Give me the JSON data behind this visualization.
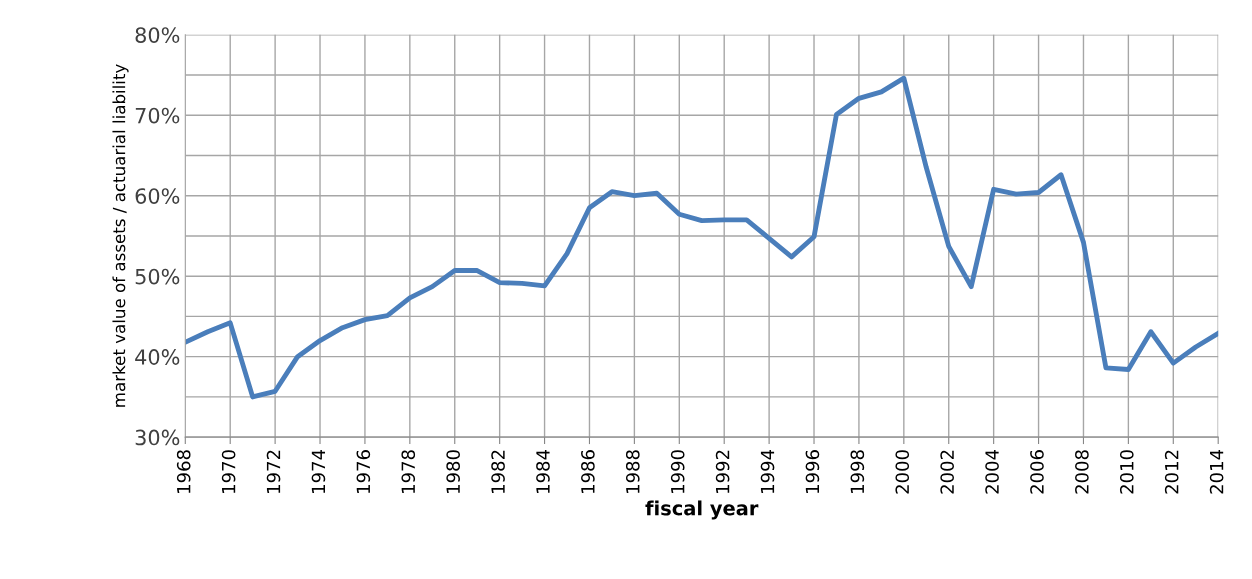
{
  "chart_data": {
    "type": "line",
    "xlabel": "fiscal year",
    "ylabel": "market value of assets / actuarial liability",
    "x": [
      1968,
      1969,
      1970,
      1971,
      1972,
      1973,
      1974,
      1975,
      1976,
      1977,
      1978,
      1979,
      1980,
      1981,
      1982,
      1983,
      1984,
      1985,
      1986,
      1987,
      1988,
      1989,
      1990,
      1991,
      1992,
      1993,
      1994,
      1995,
      1996,
      1997,
      1998,
      1999,
      2000,
      2001,
      2002,
      2003,
      2004,
      2005,
      2006,
      2007,
      2008,
      2009,
      2010,
      2011,
      2012,
      2013,
      2014
    ],
    "series": [
      {
        "color": "#4a7ebb",
        "values": [
          41.8,
          43.1,
          44.2,
          35.0,
          35.7,
          40.0,
          42.0,
          43.6,
          44.6,
          45.1,
          47.3,
          48.7,
          50.7,
          50.7,
          49.2,
          49.1,
          48.8,
          52.8,
          58.5,
          60.5,
          60.0,
          60.3,
          57.7,
          56.9,
          57.0,
          57.0,
          54.7,
          52.4,
          54.9,
          70.1,
          72.1,
          72.9,
          74.6,
          63.5,
          53.7,
          48.7,
          60.8,
          60.2,
          60.4,
          62.6,
          54.2,
          38.6,
          38.4,
          43.1,
          39.2,
          41.2,
          42.9
        ]
      }
    ],
    "xlim": [
      1968,
      2014
    ],
    "xticks": [
      1968,
      1970,
      1972,
      1974,
      1976,
      1978,
      1980,
      1982,
      1984,
      1986,
      1988,
      1990,
      1992,
      1994,
      1996,
      1998,
      2000,
      2002,
      2004,
      2006,
      2008,
      2010,
      2012,
      2014
    ],
    "ylim": [
      30,
      80
    ],
    "yticks": [
      {
        "value": 30,
        "label": "30%"
      },
      {
        "value": 35,
        "label": null
      },
      {
        "value": 40,
        "label": "40%"
      },
      {
        "value": 45,
        "label": null
      },
      {
        "value": 50,
        "label": "50%"
      },
      {
        "value": 55,
        "label": null
      },
      {
        "value": 60,
        "label": "60%"
      },
      {
        "value": 65,
        "label": null
      },
      {
        "value": 70,
        "label": "70%"
      },
      {
        "value": 75,
        "label": null
      },
      {
        "value": 80,
        "label": "80%"
      }
    ],
    "grid": true,
    "marker": "none",
    "line_style": "solid"
  }
}
